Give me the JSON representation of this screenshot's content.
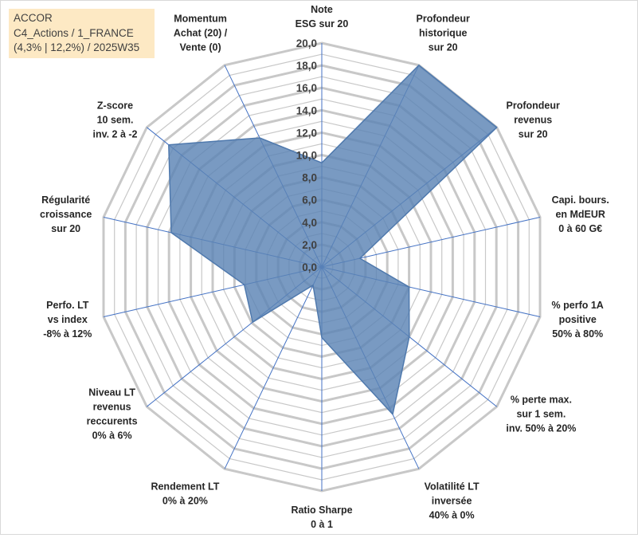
{
  "title_box": {
    "line1": "ACCOR",
    "line2": "C4_Actions / 1_FRANCE",
    "line3": "(4,3% | 12,2%) / 2025W35"
  },
  "colors": {
    "fill": "#5b84b5",
    "stroke": "#4f79ad",
    "grid": "#c8c8c8",
    "spoke": "#4472c4",
    "title_bg": "#fde9c4"
  },
  "chart_data": {
    "type": "radar",
    "ylim": [
      0,
      20
    ],
    "tick_step": 2,
    "tick_labels": [
      "0,0",
      "2,0",
      "4,0",
      "6,0",
      "8,0",
      "10,0",
      "12,0",
      "14,0",
      "16,0",
      "18,0",
      "20,0"
    ],
    "grid": true,
    "axes": [
      {
        "lines": [
          "Note",
          "ESG sur 20"
        ]
      },
      {
        "lines": [
          "Profondeur",
          "historique",
          "sur 20"
        ]
      },
      {
        "lines": [
          "Profondeur",
          "revenus",
          "sur 20"
        ]
      },
      {
        "lines": [
          "Capi. bours.",
          "en MdEUR",
          "0 à 60 G€"
        ]
      },
      {
        "lines": [
          "% perfo 1A",
          "positive",
          "50% à 80%"
        ]
      },
      {
        "lines": [
          "% perte max.",
          "sur 1 sem.",
          "inv. 50% à 20%"
        ]
      },
      {
        "lines": [
          "Volatilité LT",
          "inversée",
          "40% à 0%"
        ]
      },
      {
        "lines": [
          "Ratio Sharpe",
          "0 à 1"
        ]
      },
      {
        "lines": [
          "Rendement LT",
          "0% à 20%"
        ]
      },
      {
        "lines": [
          "Niveau LT",
          "revenus",
          "reccurents",
          "0% à 6%"
        ]
      },
      {
        "lines": [
          "Perfo. LT",
          "vs index",
          "-8% à 12%"
        ]
      },
      {
        "lines": [
          "Régularité",
          "croissance",
          "sur 20"
        ]
      },
      {
        "lines": [
          "Z-score",
          "10 sem.",
          "inv. 2 à -2"
        ]
      },
      {
        "lines": [
          "Momentum",
          "Achat (20) /",
          "Vente (0)"
        ]
      }
    ],
    "values": [
      9.3,
      20.0,
      20.0,
      3.5,
      8.0,
      10.0,
      14.6,
      6.3,
      1.8,
      7.9,
      7.1,
      13.8,
      17.5,
      12.8
    ]
  }
}
